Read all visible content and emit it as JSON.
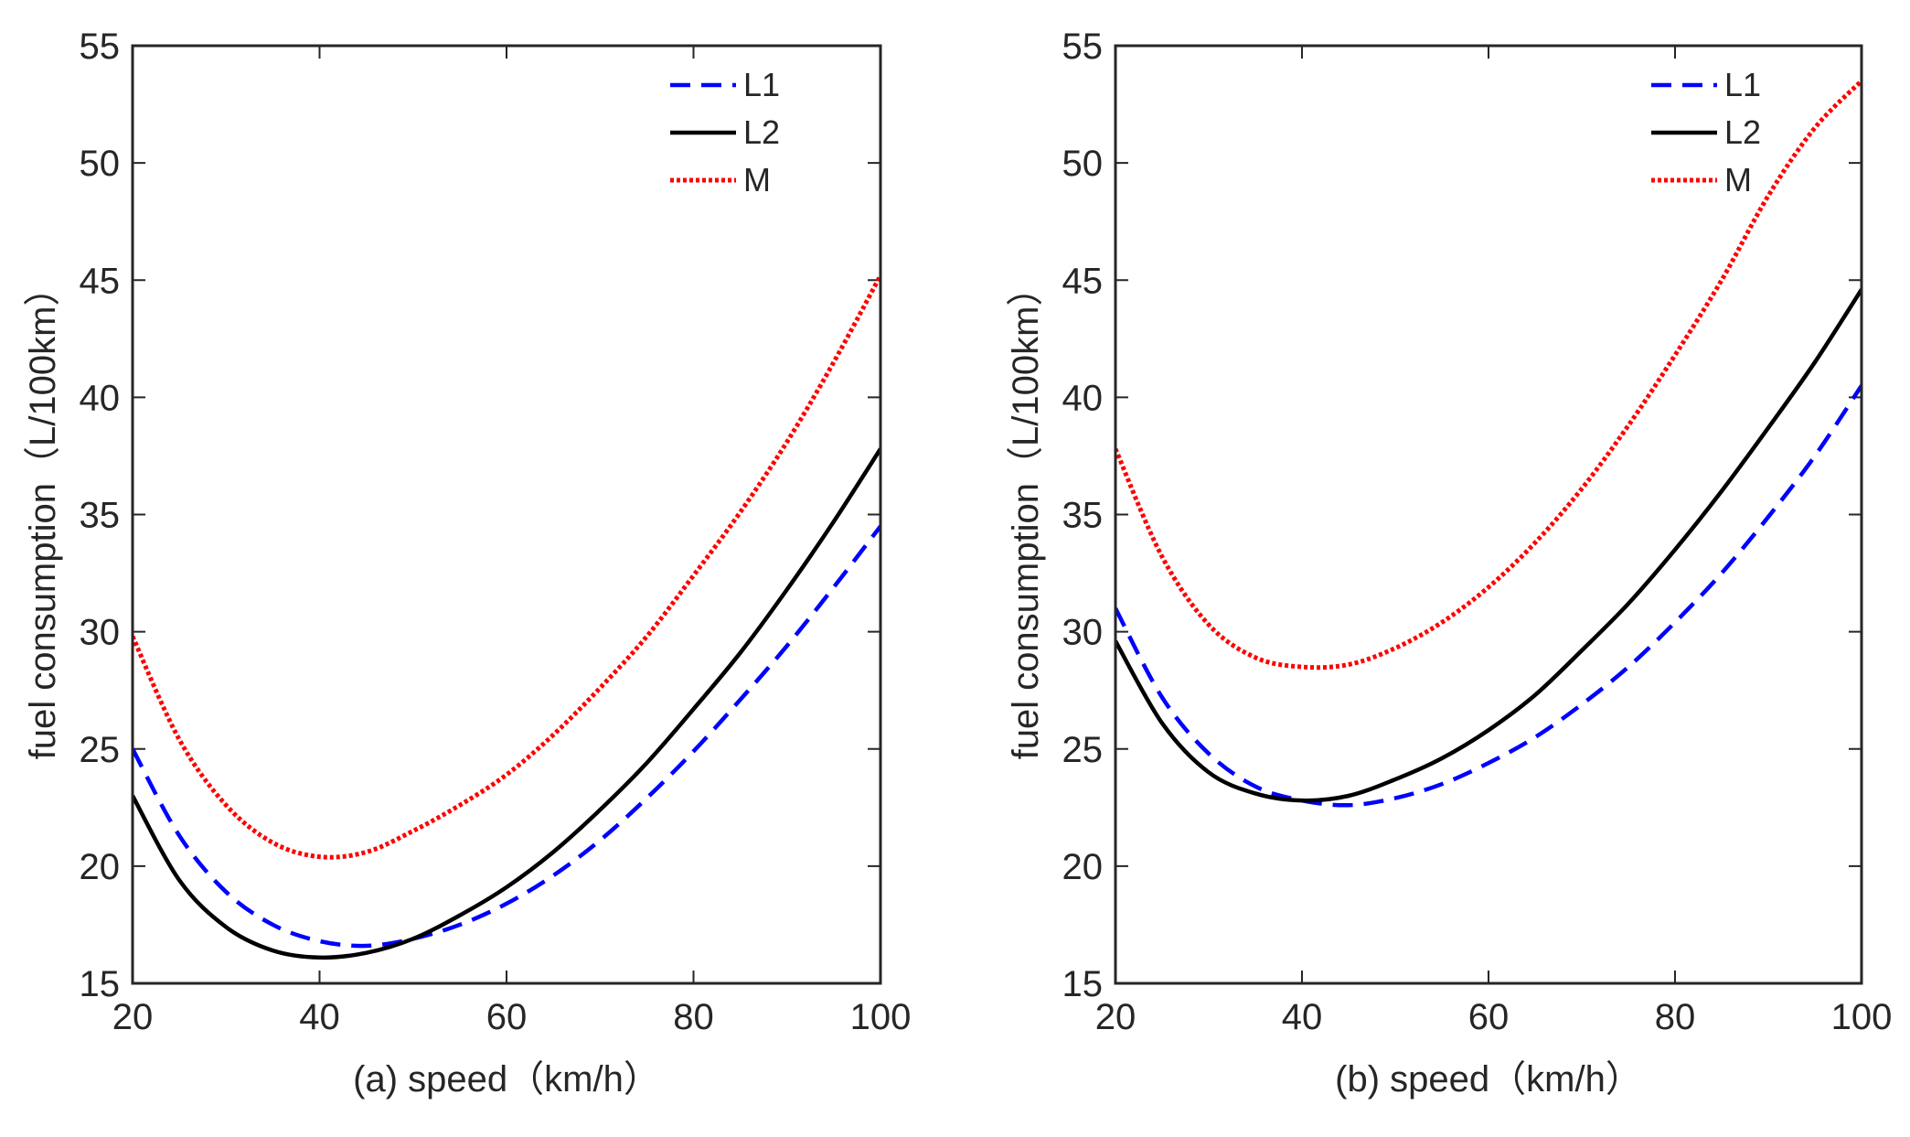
{
  "chart_data": [
    {
      "type": "line",
      "xlabel": "(a) speed（km/h）",
      "ylabel": "fuel consumption（L/100km）",
      "xlim": [
        20,
        100
      ],
      "ylim": [
        15,
        55
      ],
      "xticks": [
        20,
        40,
        60,
        80,
        100
      ],
      "yticks": [
        15,
        20,
        25,
        30,
        35,
        40,
        45,
        50,
        55
      ],
      "grid": false,
      "legend_position": "top-right",
      "series": [
        {
          "name": "L1",
          "style": "dashed",
          "color": "#0000ff",
          "x": [
            20,
            25,
            30,
            35,
            40,
            45,
            50,
            55,
            60,
            65,
            70,
            75,
            80,
            85,
            90,
            95,
            100
          ],
          "y": [
            25.0,
            21.3,
            18.9,
            17.5,
            16.8,
            16.6,
            16.9,
            17.5,
            18.4,
            19.6,
            21.1,
            22.9,
            24.9,
            27.1,
            29.4,
            31.9,
            34.5
          ]
        },
        {
          "name": "L2",
          "style": "solid",
          "color": "#000000",
          "x": [
            20,
            25,
            30,
            35,
            40,
            45,
            50,
            55,
            60,
            65,
            70,
            75,
            80,
            85,
            90,
            95,
            100
          ],
          "y": [
            23.0,
            19.4,
            17.4,
            16.4,
            16.1,
            16.3,
            16.9,
            17.9,
            19.1,
            20.6,
            22.4,
            24.4,
            26.7,
            29.1,
            31.8,
            34.7,
            37.8
          ]
        },
        {
          "name": "M",
          "style": "dotted",
          "color": "#ff0000",
          "x": [
            20,
            25,
            30,
            35,
            40,
            45,
            50,
            55,
            60,
            65,
            70,
            75,
            80,
            85,
            90,
            95,
            100
          ],
          "y": [
            29.8,
            25.4,
            22.6,
            21.0,
            20.4,
            20.6,
            21.5,
            22.6,
            23.9,
            25.6,
            27.6,
            29.8,
            32.4,
            35.1,
            38.1,
            41.5,
            45.2
          ]
        }
      ]
    },
    {
      "type": "line",
      "xlabel": "(b) speed（km/h）",
      "ylabel": "fuel consumption（L/100km）",
      "xlim": [
        20,
        100
      ],
      "ylim": [
        15,
        55
      ],
      "xticks": [
        20,
        40,
        60,
        80,
        100
      ],
      "yticks": [
        15,
        20,
        25,
        30,
        35,
        40,
        45,
        50,
        55
      ],
      "grid": false,
      "legend_position": "top-right",
      "series": [
        {
          "name": "L1",
          "style": "dashed",
          "color": "#0000ff",
          "x": [
            20,
            25,
            30,
            35,
            40,
            45,
            50,
            55,
            60,
            65,
            70,
            75,
            80,
            85,
            90,
            95,
            100
          ],
          "y": [
            31.0,
            27.2,
            24.8,
            23.4,
            22.8,
            22.6,
            22.9,
            23.5,
            24.4,
            25.5,
            26.9,
            28.5,
            30.4,
            32.5,
            34.9,
            37.5,
            40.5
          ]
        },
        {
          "name": "L2",
          "style": "solid",
          "color": "#000000",
          "x": [
            20,
            25,
            30,
            35,
            40,
            45,
            50,
            55,
            60,
            65,
            70,
            75,
            80,
            85,
            90,
            95,
            100
          ],
          "y": [
            29.6,
            26.1,
            24.0,
            23.1,
            22.8,
            23.0,
            23.7,
            24.6,
            25.8,
            27.3,
            29.2,
            31.2,
            33.5,
            36.0,
            38.7,
            41.5,
            44.6
          ]
        },
        {
          "name": "M",
          "style": "dotted",
          "color": "#ff0000",
          "x": [
            20,
            25,
            30,
            35,
            40,
            45,
            50,
            55,
            60,
            65,
            70,
            75,
            80,
            85,
            90,
            95,
            100
          ],
          "y": [
            37.8,
            33.2,
            30.3,
            28.9,
            28.5,
            28.6,
            29.3,
            30.4,
            31.9,
            33.8,
            36.1,
            38.8,
            41.8,
            45.0,
            48.6,
            51.5,
            53.5
          ]
        }
      ]
    }
  ]
}
